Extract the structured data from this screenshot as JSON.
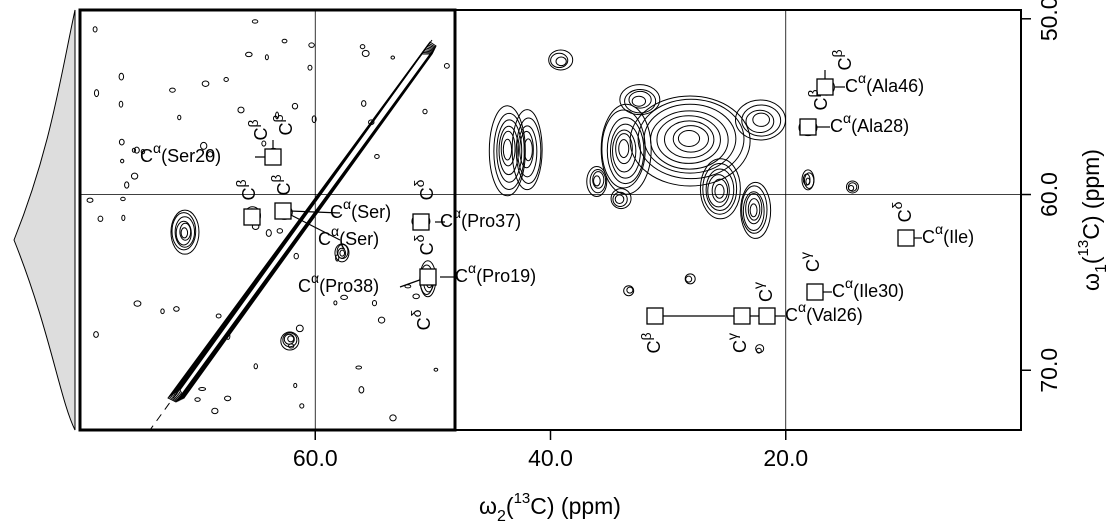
{
  "chart_data": {
    "type": "contour",
    "xlabel": [
      {
        "text": "ω"
      },
      {
        "text": "2",
        "sub": true
      },
      {
        "text": "("
      },
      {
        "text": "13",
        "sup": true
      },
      {
        "text": "C) (ppm)"
      }
    ],
    "ylabel": [
      {
        "text": "ω"
      },
      {
        "text": "1",
        "sub": true
      },
      {
        "text": "("
      },
      {
        "text": "13",
        "sup": true
      },
      {
        "text": "C) (ppm)"
      }
    ],
    "xlim": [
      80,
      0
    ],
    "ylim": [
      49.5,
      73.4
    ],
    "xticks": [
      {
        "value": 60,
        "label": "60.0"
      },
      {
        "value": 40,
        "label": "40.0"
      },
      {
        "value": 20,
        "label": "20.0"
      }
    ],
    "yticks": [
      {
        "value": 50,
        "label": "50.0"
      },
      {
        "value": 60,
        "label": "60.0"
      },
      {
        "value": 70,
        "label": "70.0"
      }
    ],
    "xgrid": [
      60,
      20
    ],
    "ygrid": [
      60
    ],
    "annotations": [
      {
        "base": "C",
        "sup": "β"
      },
      {
        "base": "C",
        "sup": "β"
      },
      {
        "base": "C",
        "sup": "α",
        "rest": "(Ser20)"
      },
      {
        "base": "C",
        "sup": "β"
      },
      {
        "base": "C",
        "sup": "β"
      },
      {
        "base": "C",
        "sup": "α",
        "rest": "(Ser)"
      },
      {
        "base": "C",
        "sup": "α",
        "rest": "(Ser)"
      },
      {
        "base": "C",
        "sup": "δ"
      },
      {
        "base": "C",
        "sup": "α",
        "rest": "(Pro37)"
      },
      {
        "base": "C",
        "sup": "δ"
      },
      {
        "base": "C",
        "sup": "α",
        "rest": "(Pro19)"
      },
      {
        "base": "C",
        "sup": "α",
        "rest": "(Pro38)"
      },
      {
        "base": "C",
        "sup": "δ"
      },
      {
        "base": "C",
        "sup": "β"
      },
      {
        "base": "C",
        "sup": "β"
      },
      {
        "base": "C",
        "sup": "α",
        "rest": "(Ala46)"
      },
      {
        "base": "C",
        "sup": "α",
        "rest": "(Ala28)"
      },
      {
        "base": "C",
        "sup": "δ"
      },
      {
        "base": "C",
        "sup": "α",
        "rest": "(Ile)"
      },
      {
        "base": "C",
        "sup": "γ"
      },
      {
        "base": "C",
        "sup": "α",
        "rest": "(Ile30)"
      },
      {
        "base": "C",
        "sup": "β"
      },
      {
        "base": "C",
        "sup": "γ"
      },
      {
        "base": "C",
        "sup": "γ"
      },
      {
        "base": "C",
        "sup": "α",
        "rest": "(Val26)"
      }
    ]
  }
}
